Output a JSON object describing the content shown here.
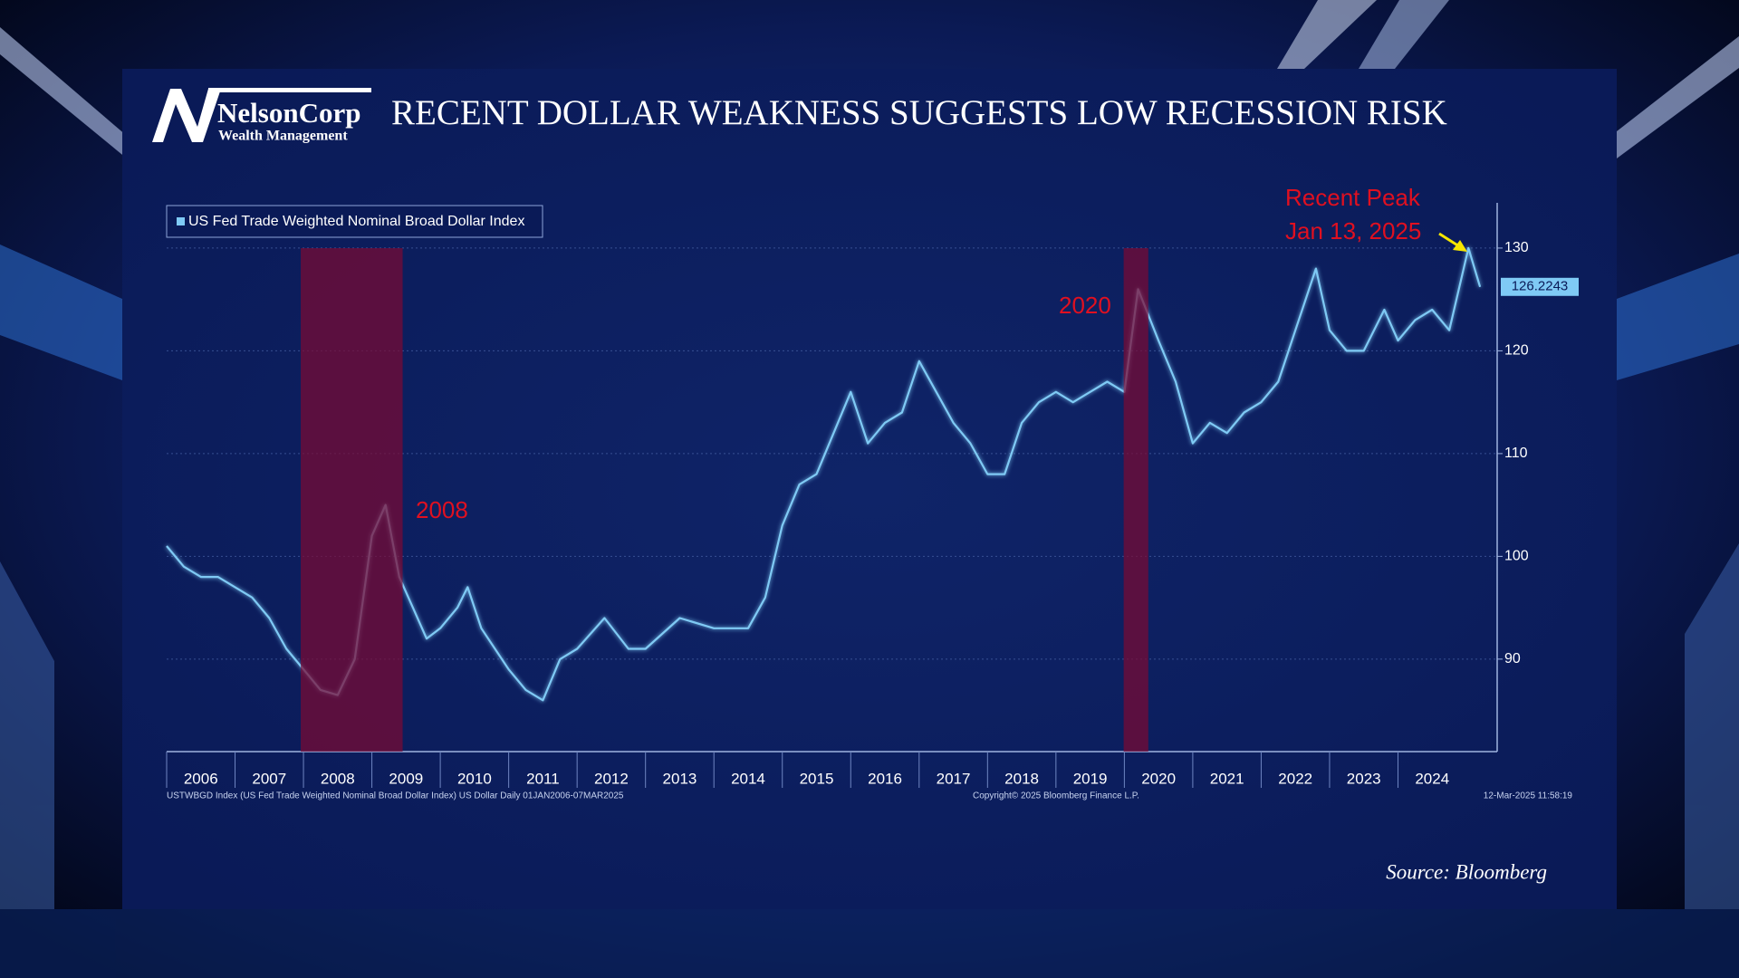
{
  "logo": {
    "name": "NelsonCorp",
    "tagline": "Wealth Management"
  },
  "chart_data": {
    "type": "line",
    "title": "RECENT DOLLAR WEAKNESS SUGGESTS LOW RECESSION RISK",
    "x": [
      2006.0,
      2006.25,
      2006.5,
      2006.75,
      2007.0,
      2007.25,
      2007.5,
      2007.75,
      2008.0,
      2008.25,
      2008.5,
      2008.75,
      2009.0,
      2009.2,
      2009.4,
      2009.6,
      2009.8,
      2010.0,
      2010.25,
      2010.4,
      2010.6,
      2010.8,
      2011.0,
      2011.25,
      2011.5,
      2011.75,
      2012.0,
      2012.4,
      2012.75,
      2013.0,
      2013.5,
      2014.0,
      2014.5,
      2014.75,
      2015.0,
      2015.25,
      2015.5,
      2015.75,
      2016.0,
      2016.25,
      2016.5,
      2016.75,
      2017.0,
      2017.25,
      2017.5,
      2017.75,
      2018.0,
      2018.25,
      2018.5,
      2018.75,
      2019.0,
      2019.25,
      2019.5,
      2019.75,
      2020.0,
      2020.2,
      2020.5,
      2020.75,
      2021.0,
      2021.25,
      2021.5,
      2021.75,
      2022.0,
      2022.25,
      2022.5,
      2022.8,
      2023.0,
      2023.25,
      2023.5,
      2023.8,
      2024.0,
      2024.25,
      2024.5,
      2024.75,
      2025.03,
      2025.2
    ],
    "series": [
      {
        "name": "US Fed Trade Weighted Nominal Broad Dollar Index",
        "color": "#7fcaf5",
        "values": [
          101,
          99,
          98,
          98,
          97,
          96,
          94,
          91,
          89,
          87,
          86.5,
          90,
          102,
          105,
          98,
          95,
          92,
          93,
          95,
          97,
          93,
          91,
          89,
          87,
          86,
          90,
          91,
          94,
          91,
          91,
          94,
          93,
          93,
          96,
          103,
          107,
          108,
          112,
          116,
          111,
          113,
          114,
          119,
          116,
          113,
          111,
          108,
          108,
          113,
          115,
          116,
          115,
          116,
          117,
          116,
          126,
          121,
          117,
          111,
          113,
          112,
          114,
          115,
          117,
          122,
          128,
          122,
          120,
          120,
          124,
          121,
          123,
          124,
          122,
          130,
          126.2243
        ]
      }
    ],
    "xlim": [
      2006,
      2025.45
    ],
    "xticks": [
      2006,
      2007,
      2008,
      2009,
      2010,
      2011,
      2012,
      2013,
      2014,
      2015,
      2016,
      2017,
      2018,
      2019,
      2020,
      2021,
      2022,
      2023,
      2024
    ],
    "ylim": [
      81,
      134.4
    ],
    "yticks": [
      90,
      100,
      110,
      120,
      130
    ],
    "grid": true,
    "legend": "top-left",
    "recessions": [
      [
        2007.96,
        2009.45
      ],
      [
        2019.99,
        2020.35
      ]
    ],
    "recession_color": "#7a0a33",
    "annotations": [
      {
        "text": "2008"
      },
      {
        "text": "2020"
      },
      {
        "text": "Recent Peak"
      },
      {
        "text": "Jan 13, 2025"
      }
    ],
    "footnotes": {
      "description": "USTWBGD Index (US Fed Trade Weighted Nominal Broad Dollar Index) US Dollar  Daily 01JAN2006-07MAR2025",
      "copyright": "Copyright© 2025 Bloomberg Finance L.P.",
      "timestamp": "12-Mar-2025 11:58:19"
    }
  },
  "source": "Source: Bloomberg"
}
